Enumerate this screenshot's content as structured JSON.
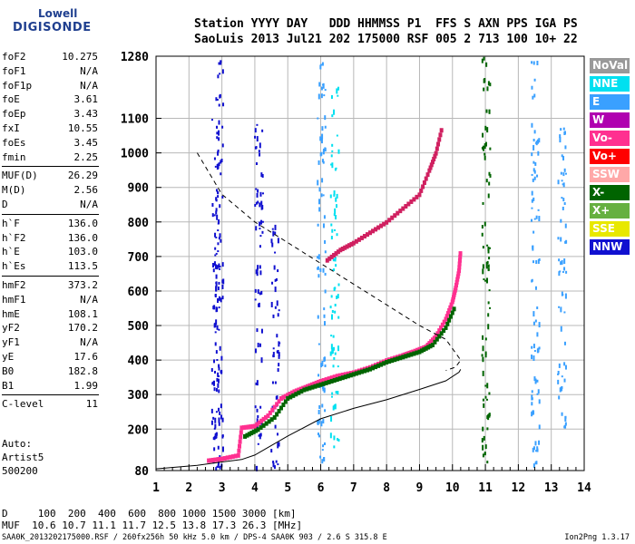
{
  "logo": {
    "line1": "Lowell",
    "line2": "DIGISONDE"
  },
  "header": {
    "line1": "Station YYYY DAY   DDD HHMMSS P1  FFS S AXN PPS IGA PS",
    "line2": "SaoLuis 2013 Jul21 202 175000 RSF 005 2 713 100 10+ 22"
  },
  "params": [
    {
      "k": "foF2",
      "v": "10.275"
    },
    {
      "k": "foF1",
      "v": "N/A"
    },
    {
      "k": "foF1p",
      "v": "N/A"
    },
    {
      "k": "foE",
      "v": "3.61"
    },
    {
      "k": "foEp",
      "v": "3.43"
    },
    {
      "k": "fxI",
      "v": "10.55"
    },
    {
      "k": "foEs",
      "v": "3.45"
    },
    {
      "k": "fmin",
      "v": "2.25"
    },
    {
      "k": "MUF(D)",
      "v": "26.29"
    },
    {
      "k": "M(D)",
      "v": "2.56"
    },
    {
      "k": "D",
      "v": "N/A"
    },
    {
      "k": "h`F",
      "v": "136.0"
    },
    {
      "k": "h`F2",
      "v": "136.0"
    },
    {
      "k": "h`E",
      "v": "103.0"
    },
    {
      "k": "h`Es",
      "v": "113.5"
    },
    {
      "k": "hmF2",
      "v": "373.2"
    },
    {
      "k": "hmF1",
      "v": "N/A"
    },
    {
      "k": "hmE",
      "v": "108.1"
    },
    {
      "k": "yF2",
      "v": "170.2"
    },
    {
      "k": "yF1",
      "v": "N/A"
    },
    {
      "k": "yE",
      "v": "17.6"
    },
    {
      "k": "B0",
      "v": "182.8"
    },
    {
      "k": "B1",
      "v": "1.99"
    },
    {
      "k": "C-level",
      "v": "11"
    }
  ],
  "auto": {
    "l1": "Auto:",
    "l2": "Artist5",
    "l3": "500200"
  },
  "dmuf": {
    "d": "D     100  200  400  600  800 1000 1500 3000 [km]",
    "muf": "MUF  10.6 10.7 11.1 11.7 12.5 13.8 17.3 26.3 [MHz]"
  },
  "footer": {
    "left": "SAA0K_2013202175000.RSF / 260fx256h 50 kHz 5.0 km / DPS-4 SAA0K 903 / 2.6 S 315.8 E",
    "right": "Ion2Png 1.3.17"
  },
  "legend": [
    {
      "label": "NoVal",
      "color": "#999999"
    },
    {
      "label": "NNE",
      "color": "#00e0f0"
    },
    {
      "label": "E",
      "color": "#3aa0ff"
    },
    {
      "label": "W",
      "color": "#b000b0"
    },
    {
      "label": "Vo-",
      "color": "#ff3090"
    },
    {
      "label": "Vo+",
      "color": "#ff0000"
    },
    {
      "label": "SSW",
      "color": "#ffa8a8"
    },
    {
      "label": "X-",
      "color": "#006400"
    },
    {
      "label": "X+",
      "color": "#66b040"
    },
    {
      "label": "SSE",
      "color": "#e8e800"
    },
    {
      "label": "NNW",
      "color": "#1010d0"
    }
  ],
  "chart_data": {
    "type": "scatter",
    "xlim": [
      1,
      14
    ],
    "ylim": [
      80,
      1280
    ],
    "x_ticks": [
      1,
      2,
      3,
      4,
      5,
      6,
      7,
      8,
      9,
      10,
      11,
      12,
      13,
      14
    ],
    "y_ticks": [
      80,
      200,
      300,
      400,
      500,
      600,
      700,
      800,
      900,
      1000,
      1100,
      1280
    ],
    "grid": true,
    "legend_placement": "right",
    "series": [
      {
        "kind": "o-trace",
        "color": "#ff3090",
        "x": [
          2.6,
          3.0,
          3.5,
          3.6,
          4.0,
          4.4,
          4.8,
          5.2,
          5.6,
          6.0,
          6.5,
          7.0,
          7.5,
          8.0,
          8.5,
          8.8,
          9.2,
          9.5,
          9.8,
          10.0,
          10.1,
          10.2,
          10.25
        ],
        "y": [
          110,
          115,
          125,
          205,
          210,
          240,
          290,
          310,
          325,
          340,
          355,
          365,
          380,
          400,
          415,
          425,
          440,
          470,
          520,
          570,
          610,
          660,
          720
        ]
      },
      {
        "kind": "x-trace",
        "color": "#006400",
        "x": [
          3.7,
          4.1,
          4.6,
          5.0,
          5.5,
          6.0,
          6.5,
          7.0,
          7.5,
          8.0,
          8.5,
          9.0,
          9.4,
          9.8,
          10.1
        ],
        "y": [
          180,
          200,
          235,
          290,
          315,
          330,
          345,
          360,
          375,
          395,
          410,
          425,
          445,
          495,
          560
        ]
      },
      {
        "kind": "multi-hop",
        "color": "#d02060",
        "x": [
          6.2,
          6.6,
          7.0,
          7.5,
          8.0,
          8.5,
          9.0,
          9.3,
          9.5,
          9.7
        ],
        "y": [
          690,
          720,
          740,
          770,
          800,
          840,
          880,
          950,
          1000,
          1080
        ]
      },
      {
        "kind": "profile-upper",
        "style": "dashed",
        "x": [
          2.25,
          3.0,
          4.0,
          5.0,
          6.0,
          7.0,
          8.0,
          9.0,
          9.8,
          10.25,
          10.1,
          9.8
        ],
        "y": [
          1000,
          880,
          800,
          740,
          680,
          620,
          560,
          500,
          460,
          400,
          380,
          370
        ]
      },
      {
        "kind": "profile-lower",
        "style": "solid",
        "x": [
          1.0,
          2.25,
          3.0,
          3.6,
          4.0,
          5.0,
          6.0,
          7.0,
          8.0,
          9.0,
          9.8,
          10.2,
          10.25
        ],
        "y": [
          85,
          95,
          105,
          112,
          125,
          180,
          230,
          260,
          285,
          315,
          340,
          365,
          373
        ]
      }
    ],
    "scatter_columns": [
      {
        "x": 2.9,
        "color": "#1010d0",
        "ymin": 90,
        "ymax": 1280
      },
      {
        "x": 2.8,
        "color": "#1010d0",
        "ymin": 90,
        "ymax": 1100
      },
      {
        "x": 4.1,
        "color": "#1010d0",
        "ymin": 90,
        "ymax": 1100
      },
      {
        "x": 4.6,
        "color": "#1010d0",
        "ymin": 90,
        "ymax": 800
      },
      {
        "x": 6.0,
        "color": "#3aa0ff",
        "ymin": 100,
        "ymax": 1280
      },
      {
        "x": 6.4,
        "color": "#00e0f0",
        "ymin": 150,
        "ymax": 1200
      },
      {
        "x": 11.0,
        "color": "#006400",
        "ymin": 100,
        "ymax": 1280
      },
      {
        "x": 12.5,
        "color": "#3aa0ff",
        "ymin": 100,
        "ymax": 1280
      },
      {
        "x": 13.3,
        "color": "#3aa0ff",
        "ymin": 200,
        "ymax": 1100
      }
    ]
  }
}
